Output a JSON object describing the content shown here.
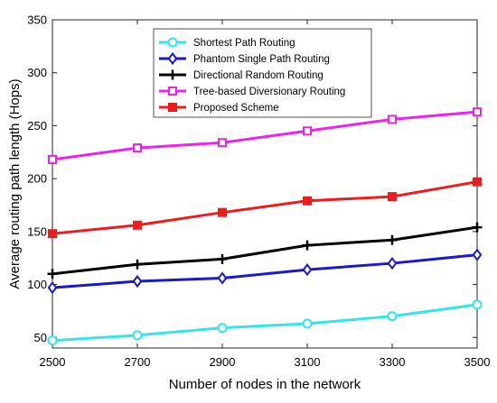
{
  "chart_data": {
    "type": "line",
    "title": "",
    "xlabel": "Number of nodes in the network",
    "ylabel": "Average routing path length (Hops)",
    "x": [
      2500,
      2700,
      2900,
      3100,
      3300,
      3500
    ],
    "xlim": [
      2500,
      3500
    ],
    "ylim": [
      40,
      350
    ],
    "xticks": [
      "2500",
      "2700",
      "2900",
      "3100",
      "3300",
      "3500"
    ],
    "yticks": [
      "50",
      "100",
      "150",
      "200",
      "250",
      "300",
      "350"
    ],
    "grid": false,
    "legend_position": "top-center",
    "series": [
      {
        "name": "Shortest Path Routing",
        "color": "#33e6e6",
        "marker": "circle",
        "values": [
          47,
          52,
          59,
          63,
          70,
          81
        ]
      },
      {
        "name": "Phantom Single Path Routing",
        "color": "#1a1acc",
        "marker": "diamond",
        "values": [
          97,
          103,
          106,
          114,
          120,
          128
        ]
      },
      {
        "name": "Directional Random Routing",
        "color": "#000000",
        "marker": "plus",
        "values": [
          110,
          119,
          124,
          137,
          142,
          154
        ]
      },
      {
        "name": "Tree-based Diversionary Routing",
        "color": "#ee22ee",
        "marker": "square",
        "values": [
          218,
          229,
          234,
          245,
          256,
          263
        ]
      },
      {
        "name": "Proposed Scheme",
        "color": "#ee1c1c",
        "marker": "filled-square",
        "values": [
          148,
          156,
          168,
          179,
          183,
          197
        ]
      }
    ]
  }
}
